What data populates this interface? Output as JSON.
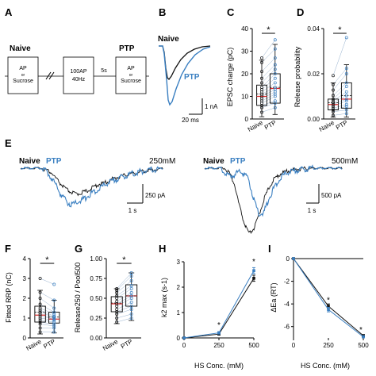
{
  "colors": {
    "naive": "#111111",
    "ptp": "#3a7fc1",
    "median": "#d62728"
  },
  "panels": {
    "A": {
      "letter": "A",
      "naive_label": "Naive",
      "ptp_label": "PTP",
      "box1": [
        "AP",
        "or",
        "Sucrose"
      ],
      "box2": [
        "100AP",
        "40Hz"
      ],
      "box3": [
        "AP",
        "or",
        "Sucrose"
      ],
      "delay": "5s"
    },
    "B": {
      "letter": "B",
      "naive_label": "Naive",
      "ptp_label": "PTP",
      "scale_y": "1 nA",
      "scale_x": "20 ms"
    },
    "C": {
      "letter": "C",
      "ylabel": "EPSC charge (pC)",
      "yticks": [
        "0",
        "10",
        "20",
        "30",
        "40"
      ],
      "xcats": [
        "Naive",
        "PTP"
      ],
      "sig": "*"
    },
    "D": {
      "letter": "D",
      "ylabel": "Release probability",
      "yticks": [
        "0.00",
        "0.02",
        "0.04"
      ],
      "xcats": [
        "Naive",
        "PTP"
      ],
      "sig": "*"
    },
    "E": {
      "letter": "E",
      "left_naive": "Naive",
      "left_ptp": "PTP",
      "left_conc": "250mM",
      "left_scale_y": "250 pA",
      "left_scale_x": "1 s",
      "right_naive": "Naive",
      "right_ptp": "PTP",
      "right_conc": "500mM",
      "right_scale_y": "500 pA",
      "right_scale_x": "1 s"
    },
    "F": {
      "letter": "F",
      "ylabel": "Fitted RRP (nC)",
      "yticks": [
        "0",
        "1",
        "2",
        "3",
        "4"
      ],
      "xcats": [
        "Naive",
        "PTP"
      ],
      "sig": "*"
    },
    "G": {
      "letter": "G",
      "ylabel": "Release250 / Pool500",
      "yticks": [
        "0.00",
        "0.25",
        "0.50",
        "0.75",
        "1.00"
      ],
      "xcats": [
        "Naive",
        "PTP"
      ],
      "sig": "*"
    },
    "H": {
      "letter": "H",
      "ylabel": "k2 max (s-1)",
      "xlabel": "HS Conc. (mM)",
      "yticks": [
        "0",
        "1",
        "2",
        "3"
      ],
      "xticks": [
        "0",
        "250",
        "500"
      ],
      "sig": "*"
    },
    "I": {
      "letter": "I",
      "ylabel": "ΔEa (RT)",
      "xlabel": "HS Conc. (mM)",
      "yticks": [
        "0",
        "-2",
        "-4",
        "-6"
      ],
      "xticks": [
        "0",
        "250",
        "500"
      ],
      "sig": "*"
    }
  },
  "chart_data": [
    {
      "panel": "C",
      "type": "box",
      "ylim": [
        0,
        40
      ],
      "series": [
        {
          "name": "Naive",
          "q1": 6,
          "median": 10,
          "q3": 15,
          "whisker_low": 1,
          "whisker_high": 26,
          "mean": 11
        },
        {
          "name": "PTP",
          "q1": 7,
          "median": 13.5,
          "q3": 20,
          "whisker_low": 2,
          "whisker_high": 33,
          "mean": 14
        }
      ],
      "paired_points": [
        [
          3,
          5
        ],
        [
          5,
          7
        ],
        [
          6,
          8
        ],
        [
          7,
          10
        ],
        [
          8,
          11
        ],
        [
          9,
          12
        ],
        [
          10,
          13
        ],
        [
          11,
          14
        ],
        [
          12,
          16
        ],
        [
          13,
          18
        ],
        [
          14,
          20
        ],
        [
          16,
          22
        ],
        [
          18,
          24
        ],
        [
          21,
          27
        ],
        [
          25,
          31
        ],
        [
          27,
          35
        ]
      ]
    },
    {
      "panel": "D",
      "type": "box",
      "ylim": [
        0,
        0.05
      ],
      "series": [
        {
          "name": "Naive",
          "q1": 0.005,
          "median": 0.008,
          "q3": 0.011,
          "whisker_low": 0.001,
          "whisker_high": 0.02,
          "mean": 0.009
        },
        {
          "name": "PTP",
          "q1": 0.006,
          "median": 0.011,
          "q3": 0.02,
          "whisker_low": 0.001,
          "whisker_high": 0.03,
          "mean": 0.013
        }
      ],
      "paired_points": [
        [
          0.002,
          0.003
        ],
        [
          0.004,
          0.005
        ],
        [
          0.005,
          0.007
        ],
        [
          0.006,
          0.008
        ],
        [
          0.007,
          0.01
        ],
        [
          0.008,
          0.011
        ],
        [
          0.009,
          0.013
        ],
        [
          0.01,
          0.015
        ],
        [
          0.011,
          0.018
        ],
        [
          0.013,
          0.02
        ],
        [
          0.016,
          0.025
        ],
        [
          0.019,
          0.028
        ],
        [
          0.024,
          0.045
        ]
      ]
    },
    {
      "panel": "E-250",
      "type": "line",
      "x": [
        0,
        0.2,
        0.4,
        0.6,
        0.8,
        1.0,
        1.2,
        1.4,
        1.6,
        1.8,
        2.0,
        2.2,
        2.4,
        2.6,
        2.8,
        3.0,
        3.2,
        3.4,
        3.6,
        3.8,
        4.0,
        4.2,
        4.4,
        4.6,
        4.8,
        5.0,
        5.2,
        5.4,
        5.6
      ],
      "series": [
        {
          "name": "Naive",
          "values": [
            0,
            0,
            0,
            0,
            0,
            -10,
            -30,
            -70,
            -110,
            -140,
            -160,
            -170,
            -160,
            -150,
            -130,
            -110,
            -100,
            -90,
            -70,
            -60,
            -50,
            -40,
            -35,
            -30,
            -20,
            -15,
            -10,
            -5,
            0
          ]
        },
        {
          "name": "PTP",
          "values": [
            0,
            0,
            0,
            0,
            0,
            -20,
            -60,
            -120,
            -180,
            -220,
            -240,
            -230,
            -210,
            -190,
            -160,
            -140,
            -120,
            -100,
            -80,
            -70,
            -55,
            -45,
            -35,
            -25,
            -20,
            -15,
            -10,
            -5,
            0
          ]
        }
      ]
    },
    {
      "panel": "E-500",
      "type": "line",
      "x": [
        0,
        0.2,
        0.4,
        0.6,
        0.8,
        1.0,
        1.2,
        1.4,
        1.6,
        1.8,
        2.0,
        2.2,
        2.4,
        2.6,
        2.8,
        3.0,
        3.2,
        3.4,
        3.6,
        3.8,
        4.0,
        4.2,
        4.4,
        4.6,
        4.8,
        5.0,
        5.2,
        5.4,
        5.6
      ],
      "series": [
        {
          "name": "Naive",
          "values": [
            0,
            0,
            0,
            0,
            0,
            -80,
            -300,
            -700,
            -1050,
            -1250,
            -1150,
            -900,
            -600,
            -380,
            -220,
            -130,
            -80,
            -50,
            -30,
            -20,
            -10,
            -5,
            0,
            0,
            0,
            0,
            0,
            0,
            0
          ]
        },
        {
          "name": "PTP",
          "values": [
            0,
            0,
            0,
            0,
            -80,
            -160,
            -120,
            -80,
            -100,
            -250,
            -600,
            -900,
            -850,
            -600,
            -380,
            -220,
            -130,
            -80,
            -50,
            -30,
            -20,
            -10,
            -5,
            0,
            0,
            0,
            0,
            0,
            0
          ]
        }
      ]
    },
    {
      "panel": "F",
      "type": "box",
      "ylim": [
        0,
        4
      ],
      "series": [
        {
          "name": "Naive",
          "q1": 0.8,
          "median": 1.15,
          "q3": 1.6,
          "whisker_low": 0.2,
          "whisker_high": 2.4,
          "mean": 1.3
        },
        {
          "name": "PTP",
          "q1": 0.75,
          "median": 0.95,
          "q3": 1.3,
          "whisker_low": 0.25,
          "whisker_high": 1.9,
          "mean": 1.05
        }
      ],
      "paired_points": [
        [
          0.3,
          0.3
        ],
        [
          0.5,
          0.5
        ],
        [
          0.7,
          0.6
        ],
        [
          0.8,
          0.7
        ],
        [
          0.9,
          0.8
        ],
        [
          1.0,
          0.9
        ],
        [
          1.1,
          0.95
        ],
        [
          1.2,
          1.0
        ],
        [
          1.3,
          1.05
        ],
        [
          1.4,
          1.1
        ],
        [
          1.5,
          1.2
        ],
        [
          1.7,
          1.3
        ],
        [
          2.0,
          1.5
        ],
        [
          2.3,
          1.9
        ],
        [
          3.0,
          2.7
        ]
      ]
    },
    {
      "panel": "G",
      "type": "box",
      "ylim": [
        0,
        1
      ],
      "series": [
        {
          "name": "Naive",
          "q1": 0.33,
          "median": 0.43,
          "q3": 0.52,
          "whisker_low": 0.18,
          "whisker_high": 0.62,
          "mean": 0.44
        },
        {
          "name": "PTP",
          "q1": 0.4,
          "median": 0.53,
          "q3": 0.67,
          "whisker_low": 0.22,
          "whisker_high": 0.82,
          "mean": 0.53
        }
      ],
      "paired_points": [
        [
          0.2,
          0.25
        ],
        [
          0.25,
          0.3
        ],
        [
          0.3,
          0.36
        ],
        [
          0.33,
          0.4
        ],
        [
          0.36,
          0.45
        ],
        [
          0.4,
          0.5
        ],
        [
          0.43,
          0.53
        ],
        [
          0.46,
          0.57
        ],
        [
          0.5,
          0.62
        ],
        [
          0.53,
          0.66
        ],
        [
          0.57,
          0.72
        ],
        [
          0.6,
          0.78
        ],
        [
          0.62,
          0.82
        ]
      ]
    },
    {
      "panel": "H",
      "type": "line",
      "x": [
        0,
        250,
        500
      ],
      "xlim": [
        0,
        500
      ],
      "ylim": [
        0,
        3
      ],
      "series": [
        {
          "name": "Naive",
          "values": [
            0,
            0.15,
            2.35
          ],
          "err": [
            0,
            0.04,
            0.12
          ]
        },
        {
          "name": "PTP",
          "values": [
            0,
            0.2,
            2.65
          ],
          "err": [
            0,
            0.05,
            0.12
          ]
        }
      ]
    },
    {
      "panel": "I",
      "type": "line",
      "x": [
        0,
        250,
        500
      ],
      "xlim": [
        0,
        500
      ],
      "ylim": [
        -7,
        0
      ],
      "series": [
        {
          "name": "Naive",
          "values": [
            0,
            -4.2,
            -6.8
          ],
          "err": [
            0,
            0.2,
            0.1
          ]
        },
        {
          "name": "PTP",
          "values": [
            0,
            -4.5,
            -6.9
          ],
          "err": [
            0,
            0.2,
            0.1
          ]
        }
      ]
    }
  ]
}
